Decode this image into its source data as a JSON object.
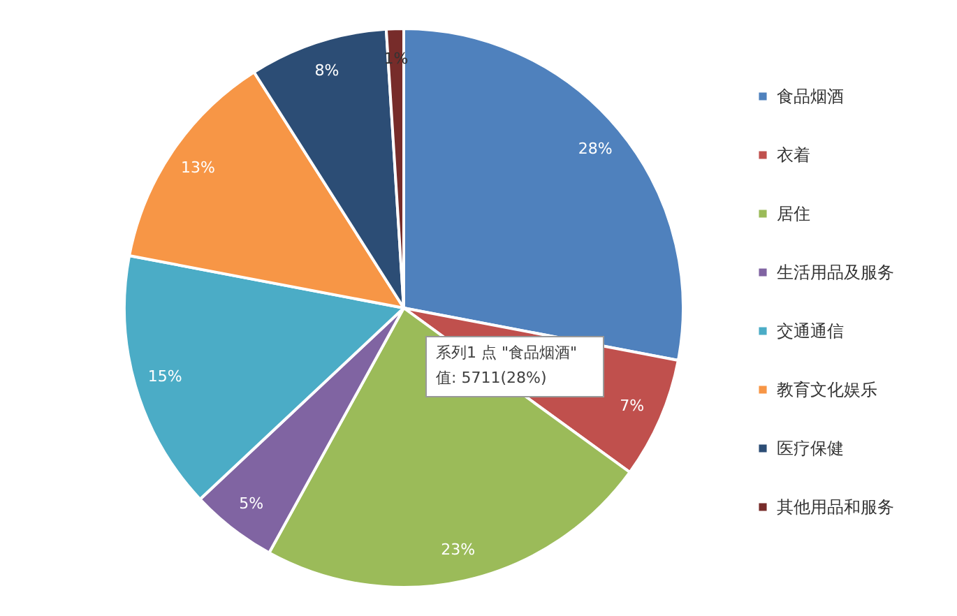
{
  "chart_data": {
    "type": "pie",
    "categories": [
      "食品烟酒",
      "衣着",
      "居住",
      "生活用品及服务",
      "交通通信",
      "教育文化娱乐",
      "医疗保健",
      "其他用品和服务"
    ],
    "values": [
      28,
      7,
      23,
      5,
      15,
      13,
      8,
      1
    ],
    "colors": [
      "#4f81bd",
      "#c0504d",
      "#9bbb59",
      "#8064a2",
      "#4bacc6",
      "#f79646",
      "#2c4d75",
      "#772c2a"
    ],
    "value_labels": [
      "28%",
      "7%",
      "23%",
      "5%",
      "15%",
      "13%",
      "8%",
      "1%"
    ],
    "legend": "right",
    "annotations": [
      "系列1 点 \"食品烟酒\"",
      "值: 5711(28%)"
    ]
  }
}
